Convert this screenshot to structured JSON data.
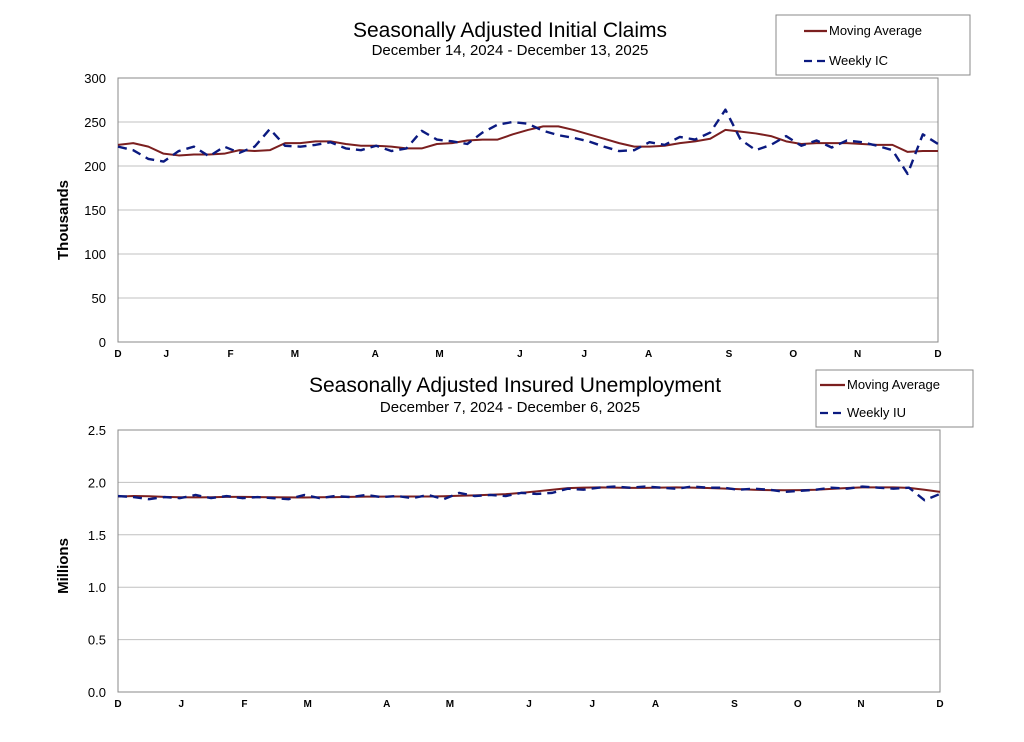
{
  "chart_data": [
    {
      "type": "line",
      "title": "Seasonally Adjusted Initial Claims",
      "subtitle": "December 14, 2024 - December 13, 2025",
      "ylabel": "Thousands",
      "xlabel": "",
      "ylim": [
        0,
        300
      ],
      "yticks": [
        0,
        50,
        100,
        150,
        200,
        250,
        300
      ],
      "ytick_labels": [
        "0",
        "50",
        "100",
        "150",
        "200",
        "250",
        "300"
      ],
      "xticks": [
        "D",
        "J",
        "F",
        "M",
        "A",
        "M",
        "J",
        "J",
        "A",
        "S",
        "O",
        "N",
        "D"
      ],
      "xtick_weeks": [
        0,
        3,
        7,
        11,
        16,
        20,
        25,
        29,
        33,
        38,
        42,
        46,
        51
      ],
      "grid": true,
      "legend_position": "top-right",
      "colors": {
        "moving_average": "#7b1f1f",
        "weekly": "#0b1a80"
      },
      "series": [
        {
          "name": "Moving Average",
          "style": "solid",
          "values": [
            224,
            226,
            222,
            214,
            212,
            213,
            213,
            214,
            218,
            217,
            218,
            226,
            226,
            228,
            228,
            225,
            223,
            223,
            222,
            220,
            220,
            225,
            226,
            229,
            230,
            230,
            236,
            241,
            245,
            245,
            241,
            236,
            231,
            226,
            222,
            222,
            223,
            226,
            228,
            231,
            241,
            239,
            237,
            234,
            228,
            225,
            226,
            226,
            226,
            225,
            224,
            224,
            216,
            217,
            217
          ]
        },
        {
          "name": "Weekly IC",
          "style": "dashed",
          "values": [
            222,
            218,
            208,
            205,
            217,
            222,
            211,
            222,
            215,
            222,
            242,
            223,
            222,
            224,
            227,
            220,
            218,
            223,
            217,
            220,
            240,
            230,
            228,
            225,
            238,
            247,
            250,
            248,
            240,
            235,
            232,
            228,
            222,
            217,
            218,
            227,
            224,
            233,
            230,
            238,
            264,
            230,
            218,
            224,
            234,
            223,
            229,
            221,
            229,
            227,
            223,
            218,
            191,
            236,
            225
          ]
        }
      ]
    },
    {
      "type": "line",
      "title": "Seasonally Adjusted Insured Unemployment",
      "subtitle": "December 7, 2024 - December 6, 2025",
      "ylabel": "Millions",
      "xlabel": "",
      "ylim": [
        0,
        2.5
      ],
      "yticks": [
        0,
        0.5,
        1.0,
        1.5,
        2.0,
        2.5
      ],
      "ytick_labels": [
        "0.0",
        "0.5",
        "1.0",
        "1.5",
        "2.0",
        "2.5"
      ],
      "xticks": [
        "D",
        "J",
        "F",
        "M",
        "A",
        "M",
        "J",
        "J",
        "A",
        "S",
        "O",
        "N",
        "D"
      ],
      "xtick_weeks": [
        0,
        4,
        8,
        12,
        17,
        21,
        26,
        30,
        34,
        39,
        43,
        47,
        52
      ],
      "grid": true,
      "legend_position": "top-right",
      "colors": {
        "moving_average": "#7b1f1f",
        "weekly": "#0b1a80"
      },
      "series": [
        {
          "name": "Moving Average",
          "style": "solid",
          "values": [
            1.865,
            1.87,
            1.868,
            1.862,
            1.858,
            1.857,
            1.858,
            1.862,
            1.862,
            1.86,
            1.858,
            1.857,
            1.856,
            1.858,
            1.86,
            1.862,
            1.864,
            1.864,
            1.865,
            1.866,
            1.866,
            1.868,
            1.872,
            1.876,
            1.882,
            1.888,
            1.9,
            1.915,
            1.93,
            1.945,
            1.95,
            1.952,
            1.95,
            1.948,
            1.948,
            1.95,
            1.952,
            1.95,
            1.946,
            1.942,
            1.936,
            1.93,
            1.926,
            1.925,
            1.926,
            1.93,
            1.938,
            1.946,
            1.952,
            1.953,
            1.952,
            1.948,
            1.93,
            1.91
          ]
        },
        {
          "name": "Weekly IU",
          "style": "dashed",
          "values": [
            1.87,
            1.86,
            1.84,
            1.86,
            1.85,
            1.88,
            1.85,
            1.87,
            1.85,
            1.86,
            1.85,
            1.84,
            1.88,
            1.85,
            1.87,
            1.86,
            1.88,
            1.86,
            1.87,
            1.85,
            1.88,
            1.84,
            1.9,
            1.87,
            1.88,
            1.87,
            1.9,
            1.89,
            1.9,
            1.94,
            1.93,
            1.95,
            1.96,
            1.95,
            1.96,
            1.95,
            1.94,
            1.96,
            1.95,
            1.95,
            1.93,
            1.94,
            1.93,
            1.91,
            1.92,
            1.93,
            1.95,
            1.94,
            1.96,
            1.95,
            1.94,
            1.95,
            1.83,
            1.89
          ]
        }
      ]
    }
  ]
}
